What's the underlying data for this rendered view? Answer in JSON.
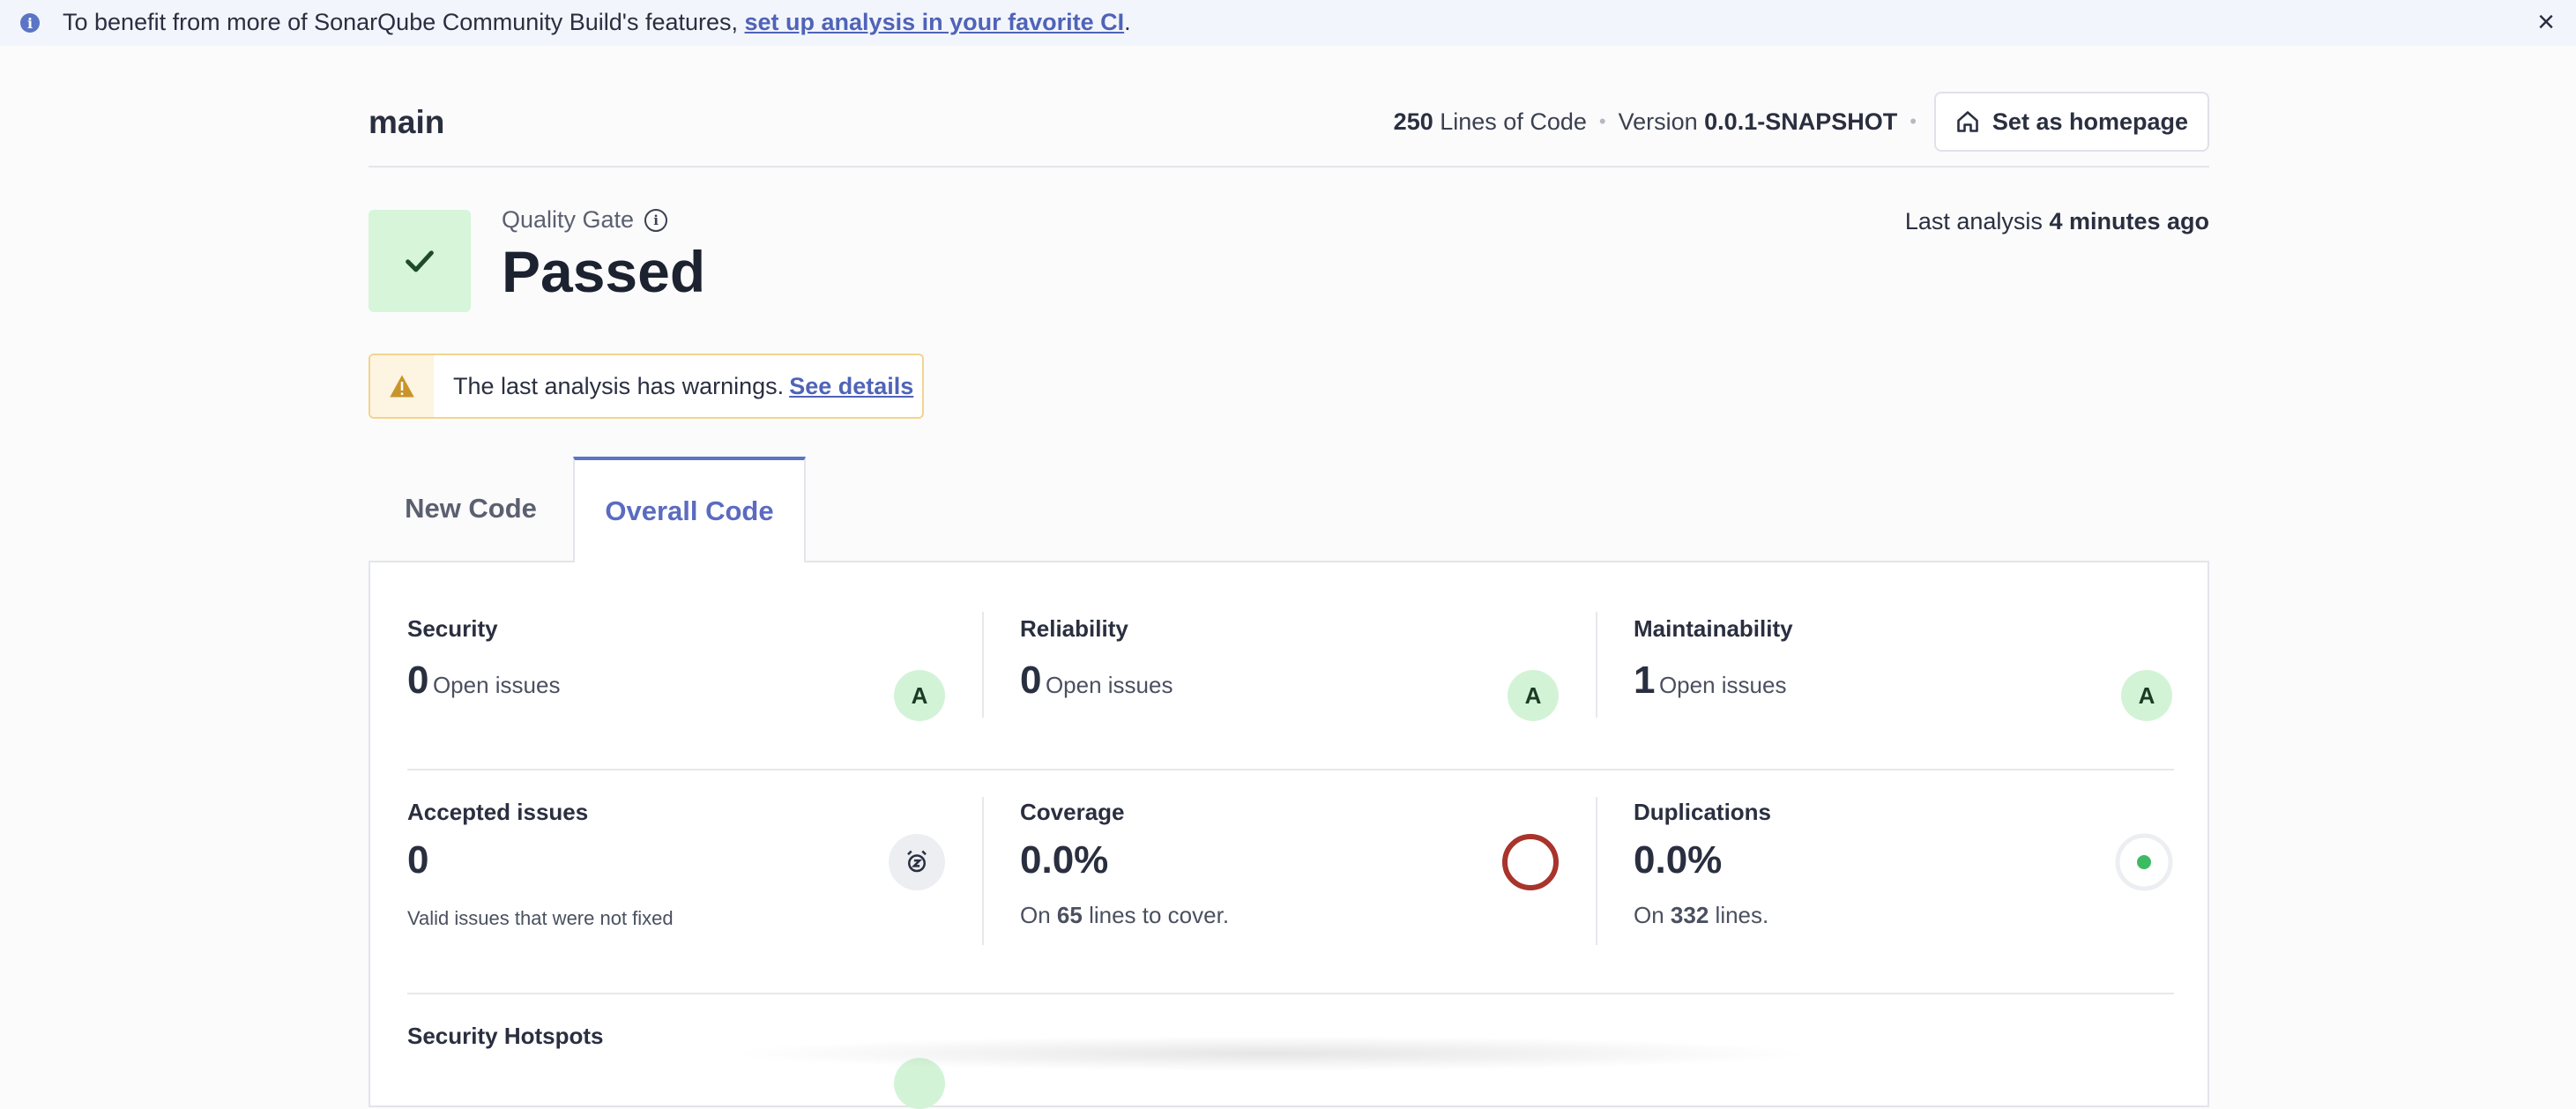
{
  "banner": {
    "text_before": "To benefit from more of SonarQube Community Build's features, ",
    "link": "set up analysis in your favorite CI",
    "text_after": ".",
    "close": "×",
    "info": "i"
  },
  "header": {
    "branch": "main",
    "loc_value": "250",
    "loc_label": "Lines of Code",
    "version_label": "Version",
    "version_value": "0.0.1-SNAPSHOT",
    "homepage_button": "Set as homepage"
  },
  "quality_gate": {
    "label": "Quality Gate",
    "status": "Passed",
    "last_analysis_label": "Last analysis",
    "last_analysis_value": "4 minutes ago"
  },
  "warning": {
    "text": "The last analysis has warnings.",
    "link": "See details"
  },
  "tabs": [
    {
      "label": "New Code"
    },
    {
      "label": "Overall Code"
    }
  ],
  "metrics": {
    "security": {
      "title": "Security",
      "value": "0",
      "unit": "Open issues",
      "rating": "A"
    },
    "reliability": {
      "title": "Reliability",
      "value": "0",
      "unit": "Open issues",
      "rating": "A"
    },
    "maintainability": {
      "title": "Maintainability",
      "value": "1",
      "unit": "Open issues",
      "rating": "A"
    },
    "accepted": {
      "title": "Accepted issues",
      "value": "0",
      "note": "Valid issues that were not fixed"
    },
    "coverage": {
      "title": "Coverage",
      "value": "0.0%",
      "note_before": "On",
      "note_value": "65",
      "note_after": "lines to cover."
    },
    "duplications": {
      "title": "Duplications",
      "value": "0.0%",
      "note_before": "On",
      "note_value": "332",
      "note_after": "lines."
    },
    "hotspots": {
      "title": "Security Hotspots"
    }
  },
  "colors": {
    "accent": "#5b74c5",
    "pass_green": "#d6f5d9",
    "coverage_ring": "#a8342c",
    "dup_dot": "#3dbb63",
    "warning_border": "#f3d48e"
  }
}
